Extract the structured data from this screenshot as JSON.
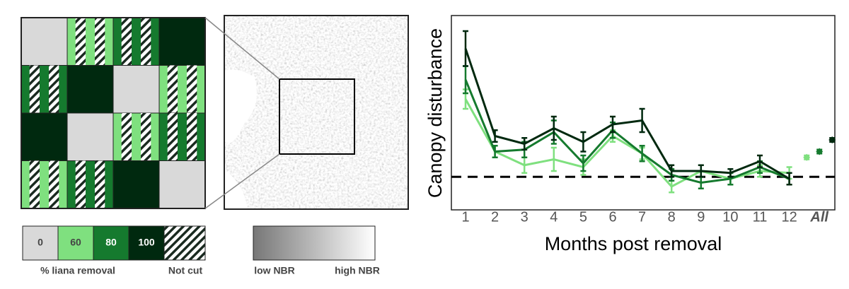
{
  "legend": {
    "control_label": "0",
    "removal_caption": "% liana removal",
    "not_cut_label": "Not cut",
    "low_label": "low NBR",
    "high_label": "high NBR"
  },
  "chart_data": {
    "type": "line",
    "ylabel": "Canopy disturbance",
    "xlabel": "Months post removal",
    "categories": [
      "1",
      "2",
      "3",
      "4",
      "5",
      "6",
      "7",
      "8",
      "9",
      "10",
      "11",
      "12"
    ],
    "summary_label": "All",
    "ylim": [
      0,
      100
    ],
    "baseline": 17,
    "series": [
      {
        "name": "60",
        "color": "#7fe07f",
        "values": [
          57,
          30,
          23,
          26,
          22,
          38,
          29,
          12,
          20,
          16,
          20,
          19
        ],
        "errors": [
          5,
          3,
          4,
          6,
          4,
          3,
          3,
          3,
          3,
          3,
          3,
          3
        ],
        "all_value": 27,
        "all_error": 1
      },
      {
        "name": "80",
        "color": "#157a2e",
        "values": [
          67,
          30,
          31,
          40,
          24,
          41,
          29,
          18,
          14,
          16,
          22,
          16
        ],
        "errors": [
          7,
          3,
          4,
          6,
          4,
          4,
          4,
          3,
          3,
          3,
          3,
          3
        ],
        "all_value": 30,
        "all_error": 1
      },
      {
        "name": "100",
        "color": "#00290f",
        "values": [
          83,
          38,
          34,
          42,
          35,
          44,
          46,
          20,
          20,
          19,
          25,
          16
        ],
        "errors": [
          9,
          3,
          3,
          6,
          5,
          4,
          6,
          3,
          3,
          2,
          3,
          3
        ],
        "all_value": 36,
        "all_error": 1
      }
    ]
  }
}
